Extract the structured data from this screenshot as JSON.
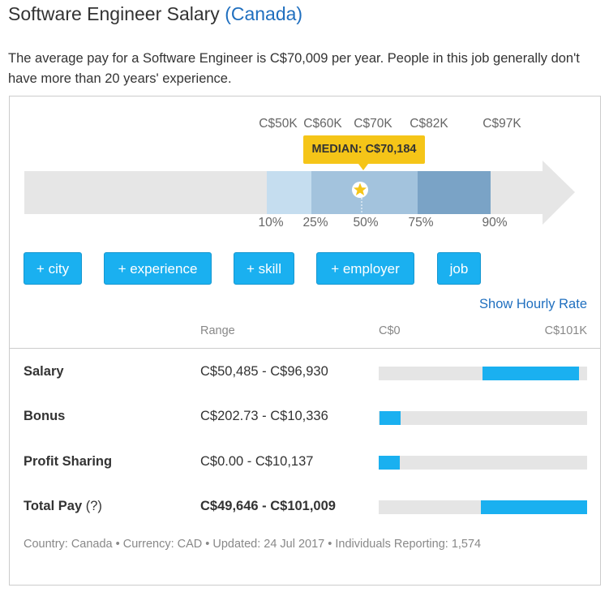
{
  "title": {
    "main": "Software Engineer Salary",
    "location": "(Canada)"
  },
  "description": "The average pay for a Software Engineer is C$70,009 per year. People in this job generally don't have more than 20 years' experience.",
  "distribution": {
    "top_labels": [
      "C$50K",
      "C$60K",
      "C$70K",
      "C$82K",
      "C$97K"
    ],
    "percentile_labels": [
      "10%",
      "25%",
      "50%",
      "75%",
      "90%"
    ],
    "median_label": "MEDIAN: C$70,184",
    "colors": {
      "arrow": "#e6e6e6",
      "band_outer": "#c5ddef",
      "band_inner": "#a3c3dd",
      "band_high": "#7aa3c6",
      "median": "#f5c518"
    }
  },
  "filters": [
    "+ city",
    "+ experience",
    "+ skill",
    "+ employer",
    "job"
  ],
  "hourly_link": "Show Hourly Rate",
  "table": {
    "headers": {
      "range": "Range",
      "min": "C$0",
      "max": "C$101K"
    },
    "rows": [
      {
        "label": "Salary",
        "range": "C$50,485 - C$96,930",
        "min": 50485,
        "max": 96930
      },
      {
        "label": "Bonus",
        "range": "C$202.73 - C$10,336",
        "min": 202.73,
        "max": 10336
      },
      {
        "label": "Profit Sharing",
        "range": "C$0.00 - C$10,137",
        "min": 0,
        "max": 10137
      },
      {
        "label": "Total Pay",
        "help": "(?)",
        "range": "C$49,646 - C$101,009",
        "min": 49646,
        "max": 101009,
        "bold": true
      }
    ]
  },
  "footer": "Country: Canada • Currency: CAD • Updated: 24 Jul 2017 • Individuals Reporting: 1,574"
}
